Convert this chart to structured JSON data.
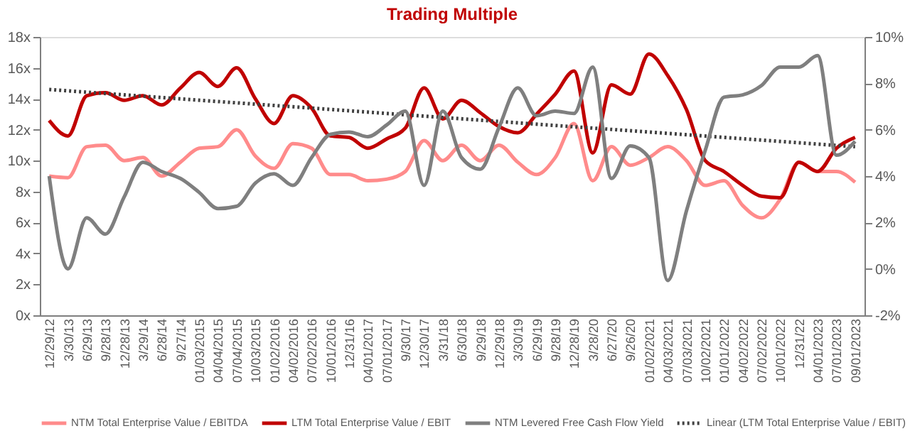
{
  "chart_data": {
    "type": "line",
    "title": "Trading Multiple",
    "categories": [
      "12/29/12",
      "3/30/13",
      "6/29/13",
      "9/28/13",
      "12/28/13",
      "3/29/14",
      "6/28/14",
      "9/27/14",
      "01/03/2015",
      "04/04/2015",
      "07/04/2015",
      "10/03/2015",
      "01/02/2016",
      "04/02/2016",
      "07/02/2016",
      "10/01/2016",
      "12/31/16",
      "04/01/2017",
      "07/01/2017",
      "9/30/17",
      "12/30/17",
      "3/31/18",
      "6/30/18",
      "9/29/18",
      "12/29/18",
      "3/30/19",
      "6/29/19",
      "9/28/19",
      "12/28/19",
      "3/28/20",
      "6/27/20",
      "9/26/20",
      "01/02/2021",
      "04/03/2021",
      "07/03/2021",
      "10/02/2021",
      "01/01/2022",
      "04/02/2022",
      "07/02/2022",
      "10/01/2022",
      "12/31/22",
      "04/01/2023",
      "07/01/2023",
      "09/01/2023"
    ],
    "series": [
      {
        "name": "NTM Total Enterprise Value / EBITDA",
        "color": "#ff8b8b",
        "values": [
          9.0,
          8.9,
          10.9,
          11.0,
          10.0,
          10.2,
          9.0,
          9.9,
          10.8,
          10.9,
          12.0,
          10.3,
          9.5,
          11.1,
          10.8,
          9.1,
          9.1,
          8.7,
          8.8,
          9.3,
          11.3,
          10.0,
          11.0,
          10.0,
          11.0,
          9.9,
          9.1,
          10.2,
          12.4,
          8.7,
          10.9,
          9.7,
          10.2,
          10.9,
          10.0,
          8.4,
          8.7,
          7.1,
          6.3,
          7.5,
          9.9,
          9.3,
          9.3,
          8.6
        ]
      },
      {
        "name": "LTM Total Enterprise Value / EBIT",
        "color": "#c00000",
        "values": [
          12.6,
          11.6,
          14.2,
          14.4,
          13.9,
          14.2,
          13.6,
          14.7,
          15.7,
          14.8,
          16.0,
          14.0,
          12.4,
          14.2,
          13.4,
          11.6,
          11.5,
          10.8,
          11.4,
          12.1,
          14.7,
          12.7,
          13.9,
          13.1,
          12.2,
          11.8,
          13.0,
          14.3,
          15.8,
          10.5,
          14.9,
          14.3,
          16.9,
          15.5,
          13.3,
          10.0,
          9.3,
          8.4,
          7.7,
          7.6,
          9.9,
          9.3,
          10.8,
          11.5
        ]
      },
      {
        "name": "NTM Levered Free Cash Flow Yield",
        "color": "#7f7f7f",
        "axis": "y2",
        "values": [
          4.0,
          0.0,
          2.2,
          1.5,
          3.1,
          4.6,
          4.2,
          3.9,
          3.3,
          2.6,
          2.7,
          3.7,
          4.1,
          3.6,
          4.8,
          5.8,
          5.9,
          5.7,
          6.2,
          6.8,
          3.6,
          6.8,
          4.8,
          4.3,
          6.1,
          7.8,
          6.6,
          6.8,
          6.7,
          8.7,
          3.9,
          5.3,
          4.8,
          -0.5,
          2.5,
          5.1,
          7.4,
          7.5,
          7.9,
          8.7,
          8.7,
          9.2,
          4.9,
          5.5
        ]
      },
      {
        "name": "Linear (LTM Total Enterprise Value / EBIT)",
        "color": "#404040",
        "line_style": "dotted",
        "x": [
          "12/29/12",
          "09/01/2023"
        ],
        "values": [
          14.6,
          10.9
        ]
      }
    ],
    "ylim": [
      0,
      18
    ],
    "yticks": [
      {
        "value": 0,
        "label": "0x"
      },
      {
        "value": 2,
        "label": "2x"
      },
      {
        "value": 4,
        "label": "4x"
      },
      {
        "value": 6,
        "label": "6x"
      },
      {
        "value": 8,
        "label": "8x"
      },
      {
        "value": 10,
        "label": "10x"
      },
      {
        "value": 12,
        "label": "12x"
      },
      {
        "value": 14,
        "label": "14x"
      },
      {
        "value": 16,
        "label": "16x"
      },
      {
        "value": 18,
        "label": "18x"
      }
    ],
    "y2lim": [
      -2,
      10
    ],
    "y2ticks": [
      {
        "value": -2,
        "label": "-2%"
      },
      {
        "value": 0,
        "label": "0%"
      },
      {
        "value": 2,
        "label": "2%"
      },
      {
        "value": 4,
        "label": "4%"
      },
      {
        "value": 6,
        "label": "6%"
      },
      {
        "value": 8,
        "label": "8%"
      },
      {
        "value": 10,
        "label": "10%"
      }
    ],
    "grid": false,
    "legend": "bottom"
  }
}
